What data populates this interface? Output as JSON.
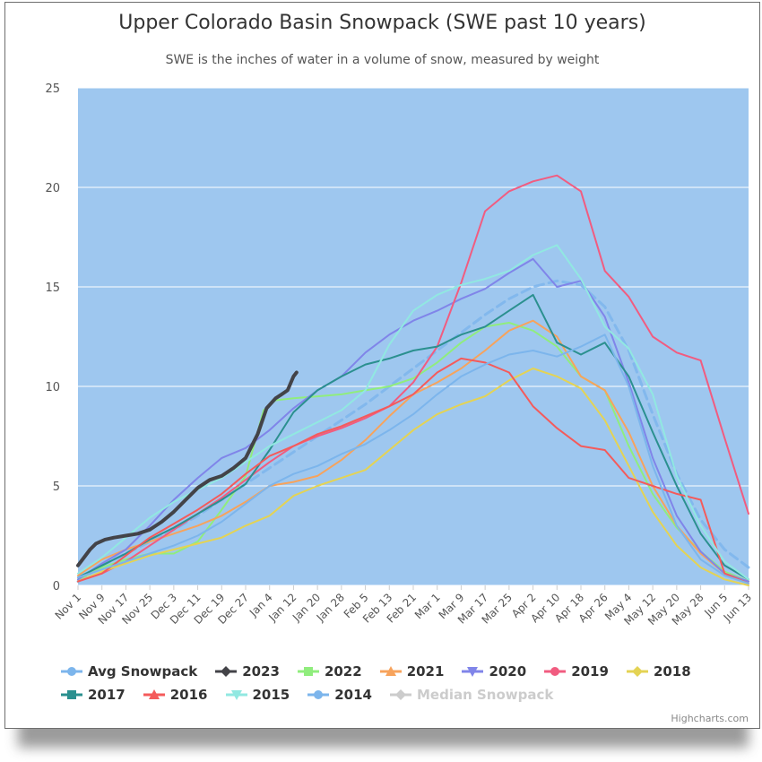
{
  "chart_data": {
    "type": "line",
    "title": "Upper Colorado Basin Snowpack (SWE past 10 years)",
    "subtitle": "SWE is the inches of water in a volume of snow, measured by weight",
    "xlabel": "",
    "ylabel": "",
    "ylim": [
      0,
      25
    ],
    "yticks": [
      0,
      5,
      10,
      15,
      20,
      25
    ],
    "x_tick_labels": [
      "Nov 1",
      "Nov 9",
      "Nov 17",
      "Nov 25",
      "Dec 3",
      "Dec 11",
      "Dec 19",
      "Dec 27",
      "Jan 4",
      "Jan 12",
      "Jan 20",
      "Jan 28",
      "Feb 5",
      "Feb 13",
      "Feb 21",
      "Mar 1",
      "Mar 9",
      "Mar 17",
      "Mar 25",
      "Apr 2",
      "Apr 10",
      "Apr 18",
      "Apr 26",
      "May 4",
      "May 12",
      "May 20",
      "May 28",
      "Jun 5",
      "Jun 13"
    ],
    "grid": true,
    "legend_position": "bottom",
    "plot_background": "#9ec7ef",
    "series": [
      {
        "name": "Avg Snowpack",
        "color": "#7cb5ec",
        "symbol": "circle",
        "dashed": true,
        "x": [
          0,
          8,
          16,
          24,
          32,
          40,
          48,
          56,
          64,
          72,
          80,
          88,
          96,
          104,
          112,
          120,
          128,
          136,
          144,
          152,
          160,
          168,
          176,
          184,
          192,
          200,
          208,
          216,
          224
        ],
        "y": [
          0.2,
          1.0,
          1.6,
          2.2,
          2.8,
          3.5,
          4.3,
          5.1,
          5.9,
          6.7,
          7.5,
          8.3,
          9.1,
          10.0,
          10.9,
          11.8,
          12.7,
          13.6,
          14.4,
          15.0,
          15.3,
          15.1,
          14.0,
          11.8,
          8.6,
          5.6,
          3.3,
          1.8,
          0.9
        ]
      },
      {
        "name": "2023",
        "color": "#434348",
        "symbol": "diamond",
        "x": [
          0,
          4,
          6,
          9,
          12,
          16,
          20,
          24,
          28,
          32,
          36,
          40,
          44,
          48,
          52,
          56,
          60,
          63,
          66,
          68,
          70,
          72,
          73
        ],
        "y": [
          1.0,
          1.8,
          2.1,
          2.3,
          2.4,
          2.5,
          2.6,
          2.8,
          3.2,
          3.7,
          4.3,
          4.9,
          5.3,
          5.5,
          5.9,
          6.4,
          7.6,
          8.9,
          9.4,
          9.6,
          9.8,
          10.5,
          10.7
        ]
      },
      {
        "name": "2022",
        "color": "#90ed7d",
        "symbol": "square",
        "x": [
          0,
          8,
          16,
          24,
          32,
          40,
          48,
          56,
          62,
          66,
          72,
          80,
          88,
          96,
          104,
          112,
          120,
          128,
          136,
          144,
          152,
          160,
          168,
          176,
          184,
          192,
          200,
          208,
          216,
          224
        ],
        "y": [
          0.3,
          0.9,
          1.3,
          1.6,
          1.6,
          2.2,
          3.8,
          5.5,
          8.8,
          9.3,
          9.4,
          9.5,
          9.6,
          9.8,
          10.0,
          10.4,
          11.2,
          12.2,
          13.0,
          13.2,
          12.8,
          12.0,
          10.5,
          9.8,
          7.0,
          4.6,
          2.9,
          1.7,
          0.7,
          0.2
        ]
      },
      {
        "name": "2021",
        "color": "#f7a35c",
        "symbol": "triangle",
        "x": [
          0,
          8,
          16,
          24,
          32,
          40,
          48,
          56,
          64,
          72,
          80,
          88,
          96,
          104,
          112,
          120,
          128,
          136,
          144,
          152,
          160,
          168,
          176,
          184,
          192,
          200,
          208,
          216,
          224
        ],
        "y": [
          0.5,
          1.3,
          1.8,
          2.2,
          2.6,
          3.0,
          3.5,
          4.2,
          5.0,
          5.2,
          5.5,
          6.3,
          7.3,
          8.5,
          9.6,
          10.2,
          10.9,
          11.8,
          12.8,
          13.3,
          12.5,
          10.5,
          9.8,
          7.7,
          5.0,
          3.0,
          1.6,
          0.6,
          0.2
        ]
      },
      {
        "name": "2020",
        "color": "#8085e9",
        "symbol": "triangle-down",
        "x": [
          0,
          8,
          16,
          24,
          32,
          40,
          48,
          56,
          64,
          72,
          80,
          88,
          96,
          104,
          112,
          120,
          128,
          136,
          144,
          152,
          160,
          168,
          176,
          184,
          192,
          200,
          208,
          216,
          224
        ],
        "y": [
          0.3,
          1.1,
          1.8,
          3.0,
          4.3,
          5.4,
          6.4,
          6.9,
          7.8,
          8.9,
          9.8,
          10.5,
          11.7,
          12.6,
          13.3,
          13.8,
          14.4,
          14.9,
          15.7,
          16.4,
          15.0,
          15.3,
          13.5,
          10.2,
          6.4,
          3.5,
          1.7,
          0.6,
          0.2
        ]
      },
      {
        "name": "2019",
        "color": "#f15c80",
        "symbol": "circle",
        "x": [
          0,
          8,
          16,
          24,
          32,
          40,
          48,
          56,
          64,
          72,
          80,
          88,
          96,
          104,
          112,
          120,
          128,
          136,
          144,
          152,
          160,
          168,
          176,
          184,
          192,
          200,
          208,
          216,
          224
        ],
        "y": [
          0.2,
          0.6,
          1.2,
          2.0,
          2.8,
          3.6,
          4.4,
          5.3,
          6.2,
          7.0,
          7.5,
          7.9,
          8.4,
          9.0,
          10.2,
          12.0,
          15.2,
          18.8,
          19.8,
          20.3,
          20.6,
          19.8,
          15.8,
          14.5,
          12.5,
          11.7,
          11.3,
          7.4,
          3.6
        ]
      },
      {
        "name": "2018",
        "color": "#e4d354",
        "symbol": "diamond",
        "x": [
          0,
          8,
          16,
          24,
          32,
          40,
          48,
          56,
          64,
          72,
          80,
          88,
          96,
          104,
          112,
          120,
          128,
          136,
          144,
          152,
          160,
          168,
          176,
          184,
          192,
          200,
          208,
          216,
          224
        ],
        "y": [
          0.2,
          0.7,
          1.1,
          1.5,
          1.8,
          2.1,
          2.4,
          3.0,
          3.5,
          4.5,
          5.0,
          5.4,
          5.8,
          6.8,
          7.8,
          8.6,
          9.1,
          9.5,
          10.3,
          10.9,
          10.5,
          9.9,
          8.3,
          6.0,
          3.7,
          2.0,
          0.9,
          0.3,
          0.0
        ]
      },
      {
        "name": "2017",
        "color": "#2b908f",
        "symbol": "square",
        "x": [
          0,
          8,
          16,
          24,
          32,
          40,
          48,
          56,
          64,
          72,
          80,
          88,
          96,
          104,
          112,
          120,
          128,
          136,
          144,
          152,
          160,
          168,
          176,
          184,
          192,
          200,
          208,
          216,
          224
        ],
        "y": [
          0.4,
          1.0,
          1.6,
          2.3,
          2.9,
          3.6,
          4.3,
          5.1,
          6.8,
          8.7,
          9.8,
          10.5,
          11.1,
          11.4,
          11.8,
          12.0,
          12.6,
          13.0,
          13.8,
          14.6,
          12.2,
          11.6,
          12.2,
          10.5,
          7.7,
          5.0,
          2.6,
          1.0,
          0.3
        ]
      },
      {
        "name": "2016",
        "color": "#f45b5b",
        "symbol": "triangle",
        "x": [
          0,
          8,
          16,
          24,
          32,
          40,
          48,
          56,
          64,
          72,
          80,
          88,
          96,
          104,
          112,
          120,
          128,
          136,
          144,
          152,
          160,
          168,
          176,
          184,
          192,
          200,
          208,
          216,
          224
        ],
        "y": [
          0.2,
          0.6,
          1.5,
          2.4,
          3.1,
          3.8,
          4.6,
          5.6,
          6.5,
          7.0,
          7.6,
          8.0,
          8.5,
          9.0,
          9.6,
          10.7,
          11.4,
          11.2,
          10.7,
          9.0,
          7.9,
          7.0,
          6.8,
          5.4,
          5.0,
          4.6,
          4.3,
          0.6,
          0.1
        ]
      },
      {
        "name": "2015",
        "color": "#91e8e1",
        "symbol": "triangle-down",
        "x": [
          0,
          8,
          16,
          24,
          32,
          40,
          48,
          56,
          64,
          72,
          80,
          88,
          96,
          104,
          112,
          120,
          128,
          136,
          144,
          152,
          160,
          168,
          176,
          184,
          192,
          200,
          208,
          216,
          224
        ],
        "y": [
          0.6,
          1.4,
          2.4,
          3.4,
          4.2,
          4.8,
          5.4,
          6.2,
          7.0,
          7.6,
          8.2,
          8.8,
          9.8,
          12.1,
          13.8,
          14.6,
          15.1,
          15.4,
          15.8,
          16.6,
          17.1,
          15.4,
          13.0,
          11.9,
          9.6,
          5.5,
          3.0,
          1.2,
          0.3
        ]
      },
      {
        "name": "2014",
        "color": "#7cb5ec",
        "symbol": "circle",
        "x": [
          0,
          8,
          16,
          24,
          32,
          40,
          48,
          56,
          64,
          72,
          80,
          88,
          96,
          104,
          112,
          120,
          128,
          136,
          144,
          152,
          160,
          168,
          176,
          184,
          192,
          200,
          208,
          216,
          224
        ],
        "y": [
          0.4,
          0.8,
          1.2,
          1.6,
          2.0,
          2.5,
          3.2,
          4.1,
          5.0,
          5.6,
          6.0,
          6.6,
          7.1,
          7.8,
          8.6,
          9.6,
          10.5,
          11.1,
          11.6,
          11.8,
          11.5,
          12.0,
          12.6,
          10.0,
          6.0,
          3.0,
          1.3,
          0.5,
          0.1
        ]
      },
      {
        "name": "Median Snowpack",
        "color": "#cccccc",
        "symbol": "diamond",
        "hidden": true
      }
    ]
  }
}
